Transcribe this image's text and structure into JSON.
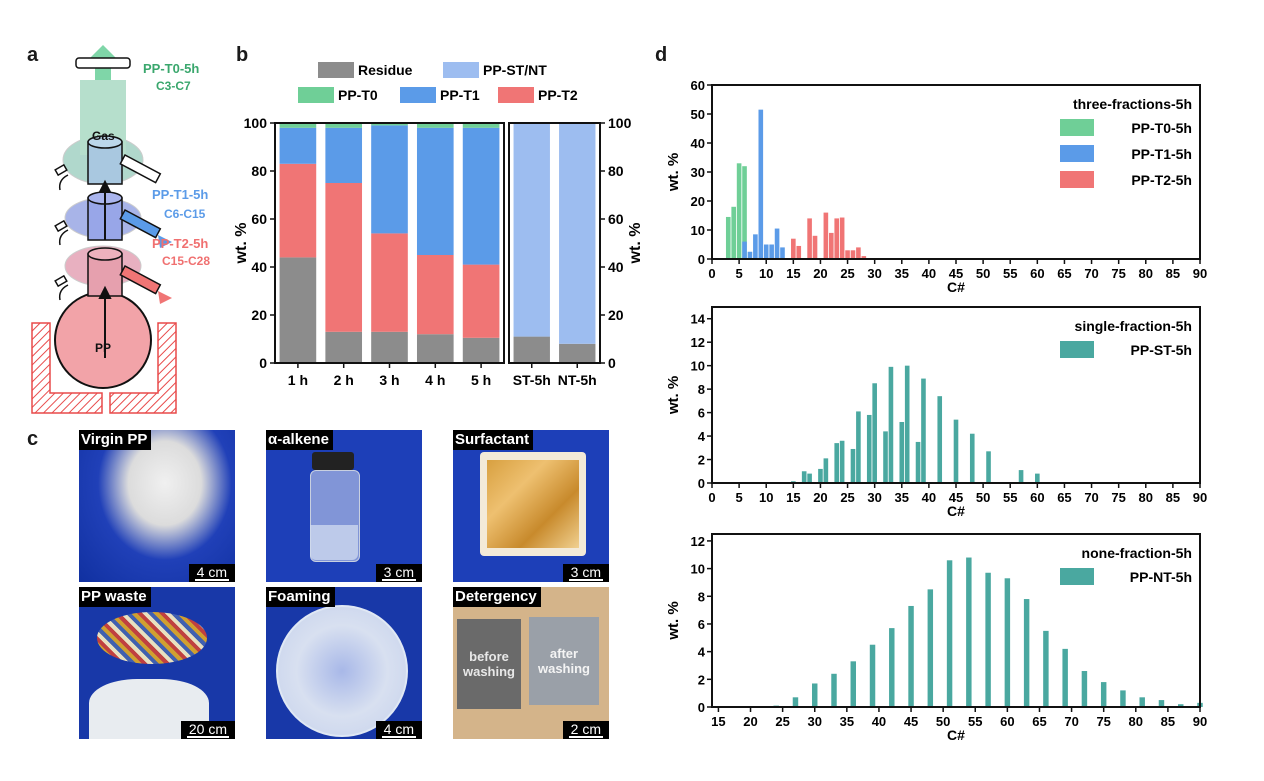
{
  "panels": {
    "a": "a",
    "b": "b",
    "c": "c",
    "d": "d"
  },
  "schematic": {
    "t0_label": "PP-T0-5h",
    "t0_range": "C3-C7",
    "t1_label": "PP-T1-5h",
    "t1_range": "C6-C15",
    "t2_label": "PP-T2-5h",
    "t2_range": "C15-C28",
    "gas_label": "Gas",
    "pp_label": "PP",
    "colors": {
      "t0": "#3aa76d",
      "t1": "#5b9be8",
      "t2": "#f07070"
    }
  },
  "photos": [
    {
      "label": "Virgin PP",
      "scale": "4 cm"
    },
    {
      "label": "α-alkene",
      "scale": "3 cm"
    },
    {
      "label": "Surfactant",
      "scale": "3 cm"
    },
    {
      "label": "PP waste",
      "scale": "20 cm"
    },
    {
      "label": "Foaming",
      "scale": "4 cm"
    },
    {
      "label": "Detergency",
      "scale": "2 cm",
      "left_text": "before washing",
      "right_text": "after washing"
    }
  ],
  "chart_data": [
    {
      "type": "bar",
      "stacked": true,
      "panel": "b",
      "title": "",
      "ylabel": "wt. %",
      "ylabel_right": "wt. %",
      "ylim": [
        0,
        100
      ],
      "yticks": [
        0,
        20,
        40,
        60,
        80,
        100
      ],
      "legend": [
        "Residue",
        "PP-ST/NT",
        "PP-T0",
        "PP-T1",
        "PP-T2"
      ],
      "legend_position": "top",
      "colors": {
        "Residue": "#8c8c8c",
        "PP-ST/NT": "#9dbdf0",
        "PP-T0": "#6fcf97",
        "PP-T1": "#5b9be8",
        "PP-T2": "#f07575"
      },
      "left_group": {
        "categories": [
          "1 h",
          "2 h",
          "3 h",
          "4 h",
          "5 h"
        ],
        "series": [
          {
            "name": "Residue",
            "values": [
              44,
              13,
              13,
              12,
              10.5
            ]
          },
          {
            "name": "PP-T2",
            "values": [
              39,
              62,
              41,
              33,
              30.5
            ]
          },
          {
            "name": "PP-T1",
            "values": [
              15,
              23,
              45,
              53,
              57
            ]
          },
          {
            "name": "PP-T0",
            "values": [
              2,
              2,
              1,
              2,
              2
            ]
          }
        ]
      },
      "right_group": {
        "categories": [
          "ST-5h",
          "NT-5h"
        ],
        "series": [
          {
            "name": "Residue",
            "values": [
              11,
              8
            ]
          },
          {
            "name": "PP-ST/NT",
            "values": [
              89,
              92
            ]
          }
        ]
      }
    },
    {
      "type": "bar",
      "panel": "d-top",
      "title": "three-fractions-5h",
      "xlabel": "C#",
      "ylabel": "wt. %",
      "xlim": [
        0,
        90
      ],
      "ylim": [
        0,
        60
      ],
      "xticks": [
        0,
        5,
        10,
        15,
        20,
        25,
        30,
        35,
        40,
        45,
        50,
        55,
        60,
        65,
        70,
        75,
        80,
        85,
        90
      ],
      "yticks": [
        0,
        10,
        20,
        30,
        40,
        50,
        60
      ],
      "legend_position": "top-right",
      "series": [
        {
          "name": "PP-T0-5h",
          "color": "#6fcf97",
          "x": [
            3,
            4,
            5,
            6
          ],
          "values": [
            14.5,
            18,
            33,
            32
          ]
        },
        {
          "name": "PP-T1-5h",
          "color": "#5b9be8",
          "x": [
            6,
            7,
            8,
            9,
            10,
            11,
            12,
            13
          ],
          "values": [
            6,
            2.5,
            8.5,
            51.5,
            5,
            5,
            10.5,
            4
          ]
        },
        {
          "name": "PP-T2-5h",
          "color": "#f07575",
          "x": [
            15,
            16,
            18,
            19,
            21,
            22,
            23,
            24,
            25,
            26,
            27,
            28
          ],
          "values": [
            7,
            4.5,
            14,
            8,
            16,
            9,
            14,
            14.3,
            3,
            3,
            4,
            1
          ]
        }
      ]
    },
    {
      "type": "bar",
      "panel": "d-middle",
      "title": "single-fraction-5h",
      "xlabel": "C#",
      "ylabel": "wt. %",
      "xlim": [
        0,
        90
      ],
      "ylim": [
        0,
        15
      ],
      "xticks": [
        0,
        5,
        10,
        15,
        20,
        25,
        30,
        35,
        40,
        45,
        50,
        55,
        60,
        65,
        70,
        75,
        80,
        85,
        90
      ],
      "yticks": [
        0,
        2,
        4,
        6,
        8,
        10,
        12,
        14
      ],
      "legend_position": "top-right",
      "series": [
        {
          "name": "PP-ST-5h",
          "color": "#4aa8a0",
          "x": [
            15,
            17,
            18,
            20,
            21,
            23,
            24,
            26,
            27,
            29,
            30,
            32,
            33,
            35,
            36,
            38,
            39,
            42,
            45,
            48,
            51,
            57,
            60
          ],
          "values": [
            0.15,
            1.0,
            0.8,
            1.2,
            2.1,
            3.4,
            3.6,
            2.9,
            6.1,
            5.8,
            8.5,
            4.4,
            9.9,
            5.2,
            10.0,
            3.5,
            8.9,
            7.4,
            5.4,
            4.2,
            2.7,
            1.1,
            0.8
          ]
        }
      ]
    },
    {
      "type": "bar",
      "panel": "d-bottom",
      "title": "none-fraction-5h",
      "xlabel": "C#",
      "ylabel": "wt. %",
      "xlim": [
        14,
        90
      ],
      "ylim": [
        0,
        12.5
      ],
      "xticks": [
        15,
        20,
        25,
        30,
        35,
        40,
        45,
        50,
        55,
        60,
        65,
        70,
        75,
        80,
        85,
        90
      ],
      "yticks": [
        0,
        2,
        4,
        6,
        8,
        10,
        12
      ],
      "legend_position": "top-right",
      "series": [
        {
          "name": "PP-NT-5h",
          "color": "#4aa8a0",
          "x": [
            24,
            27,
            30,
            33,
            36,
            39,
            42,
            45,
            48,
            51,
            54,
            57,
            60,
            63,
            66,
            69,
            72,
            75,
            78,
            81,
            84,
            87,
            90
          ],
          "values": [
            0.1,
            0.7,
            1.7,
            2.4,
            3.3,
            4.5,
            5.7,
            7.3,
            8.5,
            10.6,
            10.8,
            9.7,
            9.3,
            7.8,
            5.5,
            4.2,
            2.6,
            1.8,
            1.2,
            0.7,
            0.5,
            0.2,
            0.3
          ]
        }
      ]
    }
  ]
}
